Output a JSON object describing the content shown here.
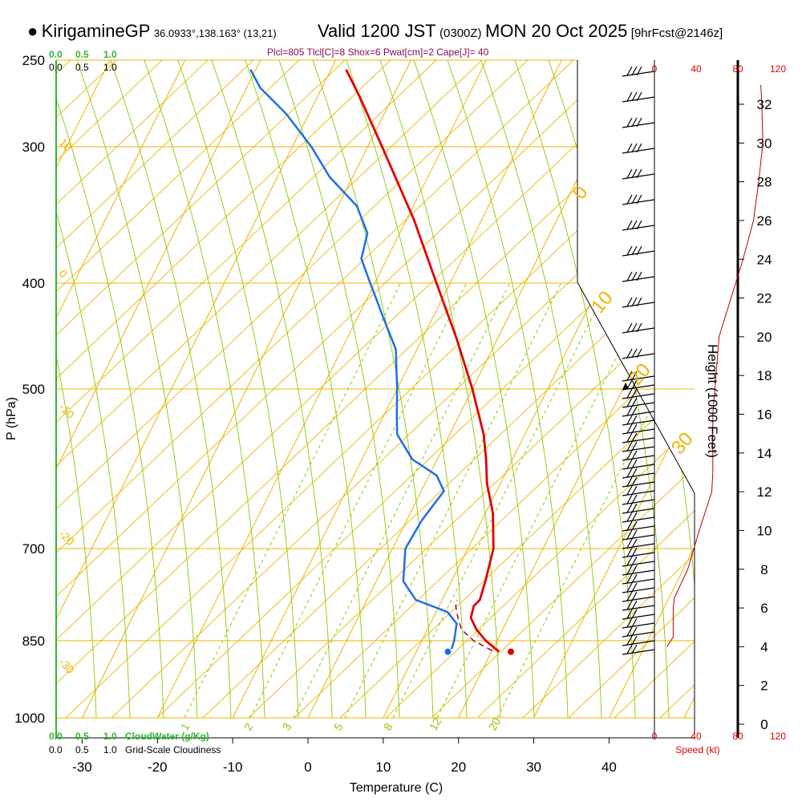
{
  "header": {
    "station": "KirigamineGP",
    "coords": "36.0933°,138.163° (13,21)",
    "valid": "Valid 1200 JST",
    "zulu": "(0300Z)",
    "date": "MON 20 Oct 2025",
    "fcst": "[9hrFcst@2146z]",
    "params": "Plcl=805 Tlcl[C]=8 Shox=6 Pwat[cm]=2 Cape[J]= 40"
  },
  "colors": {
    "isotherm": "#f0b400",
    "dry_adiabat": "#8cc800",
    "moist_adiabat": "#8cc800",
    "temp": "#e00000",
    "dewpoint": "#1e6ee6",
    "parcel": "#8b0a50",
    "cloudwater": "#2eb82e",
    "wind": "#000000",
    "speed": "#c00000"
  },
  "chart_data": {
    "type": "skew-t",
    "title": "KirigamineGP Valid 1200 JST (0300Z) MON 20 Oct 2025",
    "xlabel": "Temperature (C)",
    "ylabel": "P (hPa)",
    "y2label": "Height (1000 Feet)",
    "x_ticks": [
      -30,
      -20,
      -10,
      0,
      10,
      20,
      30,
      40
    ],
    "p_ticks": [
      250,
      300,
      400,
      500,
      700,
      850,
      1000
    ],
    "height_ticks": [
      0,
      2,
      4,
      6,
      8,
      10,
      12,
      14,
      16,
      18,
      20,
      22,
      24,
      26,
      28,
      30,
      32
    ],
    "isotherm_labels": [
      "10",
      "0",
      "-10",
      "-20",
      "-30"
    ],
    "dry_adiabat_labels": [
      "0",
      "10",
      "20",
      "30"
    ],
    "mixing_ratio_labels": [
      "1",
      "2",
      "3",
      "5",
      "8",
      "12",
      "20"
    ],
    "cloud_scale": [
      "0.0",
      "0.5",
      "1.0"
    ],
    "cloudwater_label": "CloudWater (g/Kg)",
    "cloudiness_label": "Grid-Scale Cloudiness",
    "speed_ticks": [
      "0",
      "40",
      "80",
      "120"
    ],
    "speed_label": "Speed (kt)",
    "temperature": [
      {
        "p": 870,
        "t": 21.0
      },
      {
        "p": 850,
        "t": 18.5
      },
      {
        "p": 830,
        "t": 16.5
      },
      {
        "p": 810,
        "t": 15.0
      },
      {
        "p": 790,
        "t": 14.6
      },
      {
        "p": 780,
        "t": 15.0
      },
      {
        "p": 750,
        "t": 14.5
      },
      {
        "p": 700,
        "t": 13.4
      },
      {
        "p": 650,
        "t": 11.0
      },
      {
        "p": 610,
        "t": 8.2
      },
      {
        "p": 580,
        "t": 6.5
      },
      {
        "p": 550,
        "t": 4.5
      },
      {
        "p": 500,
        "t": 0.0
      },
      {
        "p": 450,
        "t": -5.4
      },
      {
        "p": 400,
        "t": -11.8
      },
      {
        "p": 350,
        "t": -19.0
      },
      {
        "p": 300,
        "t": -28.1
      },
      {
        "p": 270,
        "t": -34.4
      },
      {
        "p": 255,
        "t": -38.0
      }
    ],
    "dewpoint": [
      {
        "p": 865,
        "t": 14.5
      },
      {
        "p": 850,
        "t": 14.3
      },
      {
        "p": 820,
        "t": 13.5
      },
      {
        "p": 800,
        "t": 11.5
      },
      {
        "p": 780,
        "t": 6.5
      },
      {
        "p": 750,
        "t": 3.6
      },
      {
        "p": 700,
        "t": 1.7
      },
      {
        "p": 660,
        "t": 2.0
      },
      {
        "p": 620,
        "t": 3.0
      },
      {
        "p": 600,
        "t": 1.0
      },
      {
        "p": 580,
        "t": -3.3
      },
      {
        "p": 550,
        "t": -7.0
      },
      {
        "p": 530,
        "t": -8.2
      },
      {
        "p": 500,
        "t": -10.0
      },
      {
        "p": 460,
        "t": -12.8
      },
      {
        "p": 430,
        "t": -16.6
      },
      {
        "p": 400,
        "t": -20.6
      },
      {
        "p": 380,
        "t": -23.4
      },
      {
        "p": 360,
        "t": -24.3
      },
      {
        "p": 340,
        "t": -27.5
      },
      {
        "p": 320,
        "t": -33.0
      },
      {
        "p": 300,
        "t": -37.5
      },
      {
        "p": 280,
        "t": -43.0
      },
      {
        "p": 265,
        "t": -48.2
      },
      {
        "p": 255,
        "t": -50.7
      }
    ],
    "parcel": [
      {
        "p": 868,
        "t": 20.0
      },
      {
        "p": 850,
        "t": 16.9
      },
      {
        "p": 830,
        "t": 14.5
      },
      {
        "p": 805,
        "t": 13.0
      },
      {
        "p": 790,
        "t": 12.2
      },
      {
        "p": 780,
        "t": 12.0
      }
    ],
    "surface_temp": 21.5,
    "surface_dewpoint": 14.2,
    "wind_speed_profile": [
      {
        "h": 4,
        "kt": 12
      },
      {
        "h": 4.5,
        "kt": 18
      },
      {
        "h": 6,
        "kt": 18
      },
      {
        "h": 6.5,
        "kt": 19
      },
      {
        "h": 8,
        "kt": 32
      },
      {
        "h": 10,
        "kt": 43
      },
      {
        "h": 12,
        "kt": 55
      },
      {
        "h": 13,
        "kt": 56
      },
      {
        "h": 16,
        "kt": 56
      },
      {
        "h": 20,
        "kt": 62
      },
      {
        "h": 24,
        "kt": 85
      },
      {
        "h": 26,
        "kt": 95
      },
      {
        "h": 28,
        "kt": 100
      },
      {
        "h": 30,
        "kt": 104
      },
      {
        "h": 32,
        "kt": 103
      },
      {
        "h": 33,
        "kt": 102
      }
    ]
  }
}
